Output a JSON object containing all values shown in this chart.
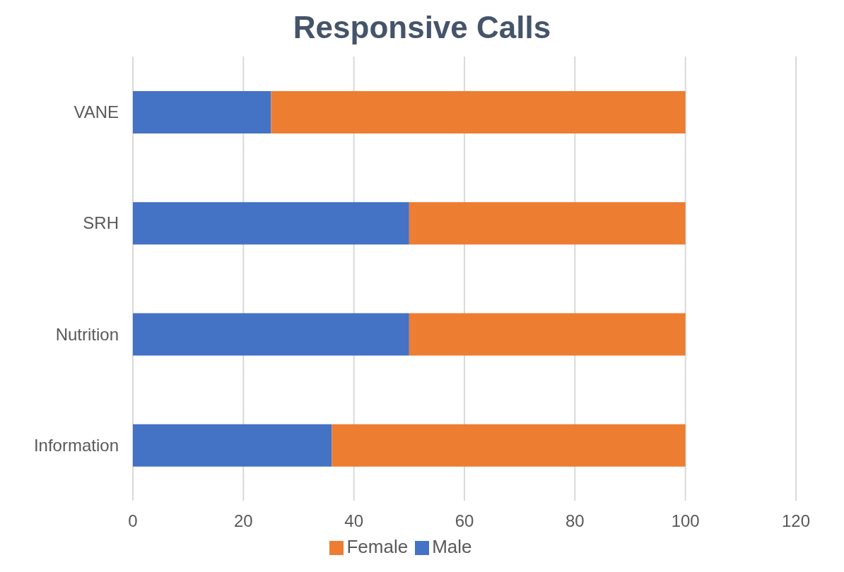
{
  "chart_data": {
    "type": "bar",
    "title": "Responsive Calls",
    "orientation": "horizontal",
    "stacked": true,
    "categories": [
      "VANE",
      "SRH",
      "Nutrition",
      "Information"
    ],
    "series": [
      {
        "name": "Male",
        "color": "#4472c4",
        "values": [
          25,
          50,
          50,
          36
        ]
      },
      {
        "name": "Female",
        "color": "#ed7d31",
        "values": [
          75,
          50,
          50,
          64
        ]
      }
    ],
    "xlim": [
      0,
      120
    ],
    "xticks": [
      0,
      20,
      40,
      60,
      80,
      100,
      120
    ],
    "grid": "x",
    "legend": "bottom"
  }
}
